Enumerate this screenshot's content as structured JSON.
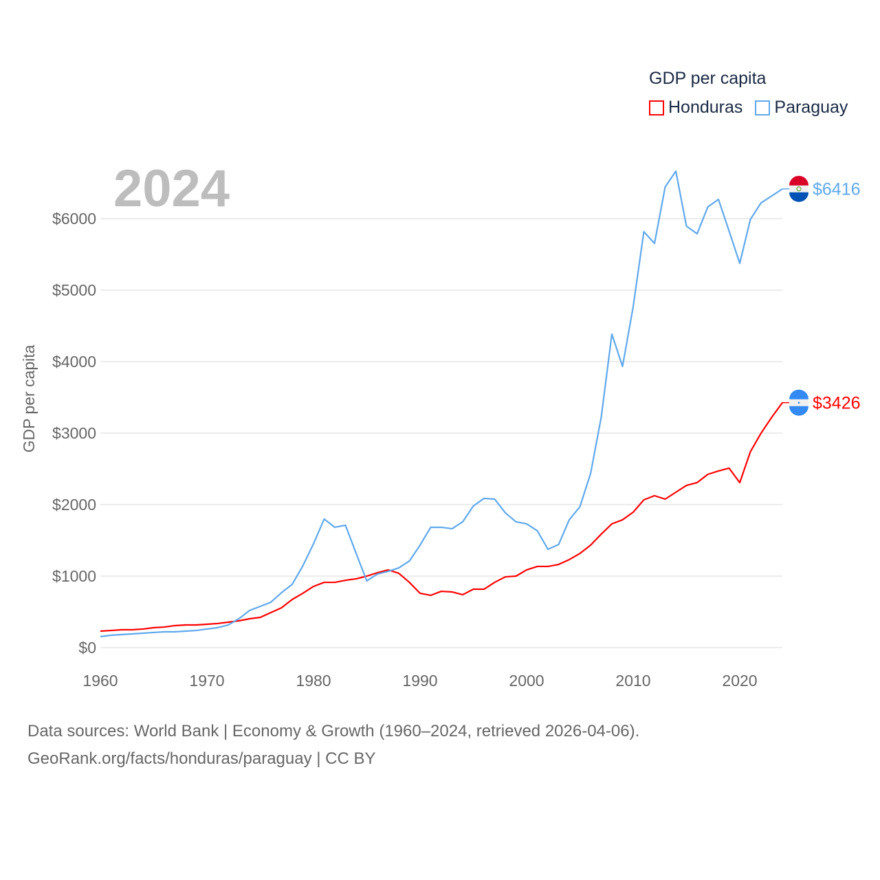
{
  "chart_data": {
    "type": "line",
    "title": "GDP per capita",
    "year_label": "2024",
    "xlabel": "",
    "ylabel": "GDP per capita",
    "xlim": [
      1960,
      2024
    ],
    "ylim": [
      0,
      6700
    ],
    "x_ticks": [
      "1960",
      "1970",
      "1980",
      "1990",
      "2000",
      "2010",
      "2020"
    ],
    "x_tick_values": [
      1960,
      1970,
      1980,
      1990,
      2000,
      2010,
      2020
    ],
    "y_ticks": [
      "$0",
      "$1000",
      "$2000",
      "$3000",
      "$4000",
      "$5000",
      "$6000"
    ],
    "y_tick_values": [
      0,
      1000,
      2000,
      3000,
      4000,
      5000,
      6000
    ],
    "legend_placement": "top-right",
    "x": [
      1960,
      1961,
      1962,
      1963,
      1964,
      1965,
      1966,
      1967,
      1968,
      1969,
      1970,
      1971,
      1972,
      1973,
      1974,
      1975,
      1976,
      1977,
      1978,
      1979,
      1980,
      1981,
      1982,
      1983,
      1984,
      1985,
      1986,
      1987,
      1988,
      1989,
      1990,
      1991,
      1992,
      1993,
      1994,
      1995,
      1996,
      1997,
      1998,
      1999,
      2000,
      2001,
      2002,
      2003,
      2004,
      2005,
      2006,
      2007,
      2008,
      2009,
      2010,
      2011,
      2012,
      2013,
      2014,
      2015,
      2016,
      2017,
      2018,
      2019,
      2020,
      2021,
      2022,
      2023,
      2024
    ],
    "series": [
      {
        "name": "Honduras",
        "color": "#ff0000",
        "end_label": "$3426",
        "values": [
          231,
          240,
          250,
          250,
          260,
          279,
          288,
          308,
          317,
          317,
          327,
          337,
          356,
          375,
          404,
          423,
          490,
          558,
          673,
          760,
          856,
          913,
          913,
          942,
          962,
          1000,
          1048,
          1087,
          1040,
          913,
          760,
          731,
          788,
          779,
          740,
          817,
          817,
          913,
          990,
          1000,
          1087,
          1135,
          1135,
          1163,
          1231,
          1317,
          1433,
          1587,
          1731,
          1788,
          1894,
          2067,
          2125,
          2077,
          2173,
          2269,
          2308,
          2423,
          2471,
          2510,
          2308,
          2740,
          3000,
          3221,
          3426
        ]
      },
      {
        "name": "Paraguay",
        "color": "#5ea8ec",
        "end_label": "$6416",
        "values": [
          154,
          173,
          183,
          192,
          202,
          212,
          221,
          221,
          231,
          240,
          260,
          279,
          317,
          404,
          519,
          577,
          635,
          769,
          885,
          1144,
          1452,
          1798,
          1683,
          1712,
          1317,
          933,
          1029,
          1067,
          1115,
          1212,
          1433,
          1683,
          1683,
          1663,
          1760,
          1981,
          2087,
          2077,
          1885,
          1760,
          1731,
          1635,
          1375,
          1442,
          1788,
          1971,
          2433,
          3221,
          4385,
          3933,
          4769,
          5817,
          5654,
          6442,
          6663,
          5894,
          5788,
          6163,
          6269,
          5827,
          5375,
          5990,
          6221,
          6317,
          6416
        ]
      }
    ]
  },
  "footer": {
    "line1": "Data sources: World Bank | Economy & Growth (1960–2024, retrieved 2026-04-06).",
    "line2": "GeoRank.org/facts/honduras/paraguay | CC BY"
  }
}
